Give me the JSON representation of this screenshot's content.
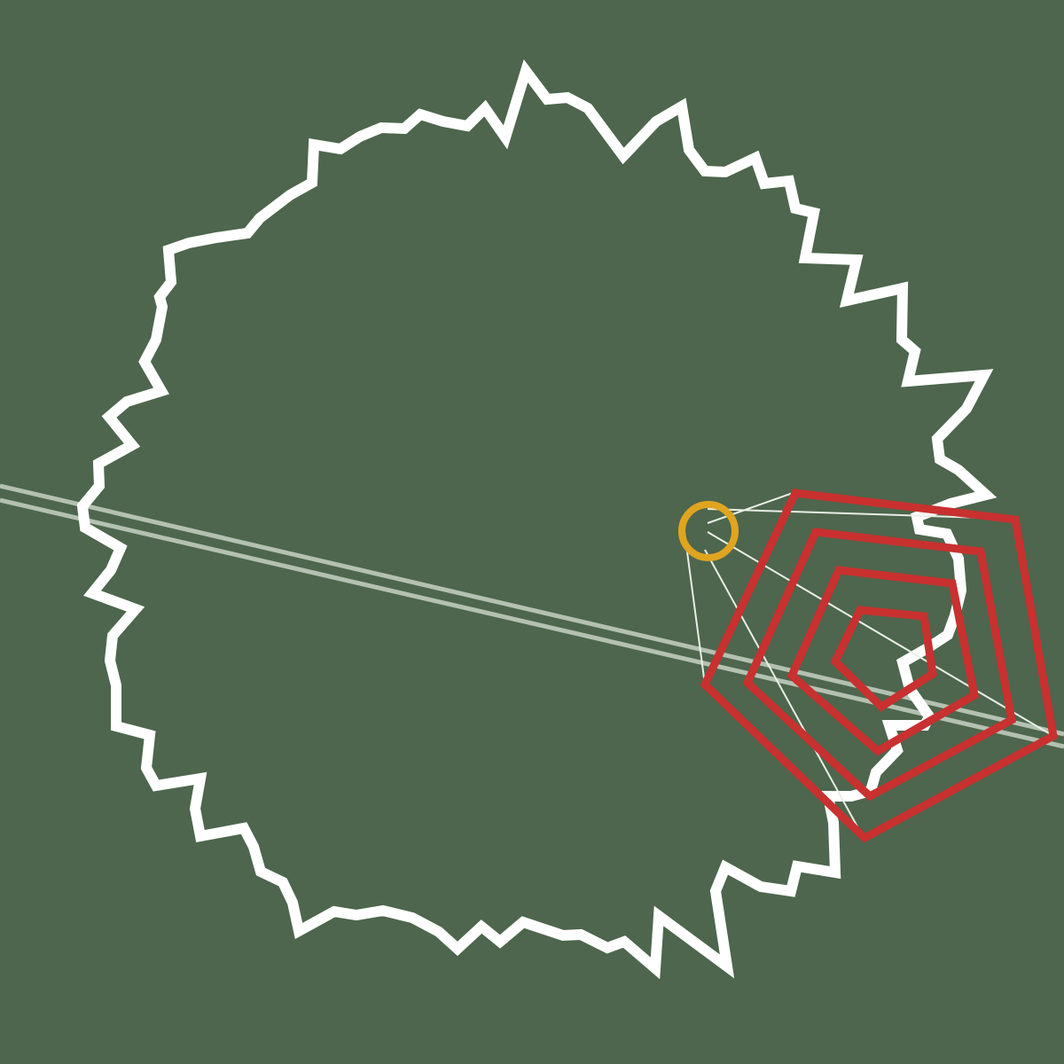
{
  "colors": {
    "background": "#4d664d",
    "outline": "#ffffff",
    "track": "#c6d2c4",
    "rings": "#c8312f",
    "marker": "#e0a520",
    "rays": "#e9efe6"
  },
  "shapes": {
    "jagged_outline": "white-spiky-closed-loop",
    "nested_pentagons": 4,
    "marker": "orange-ring",
    "track": "double-diagonal-line"
  }
}
